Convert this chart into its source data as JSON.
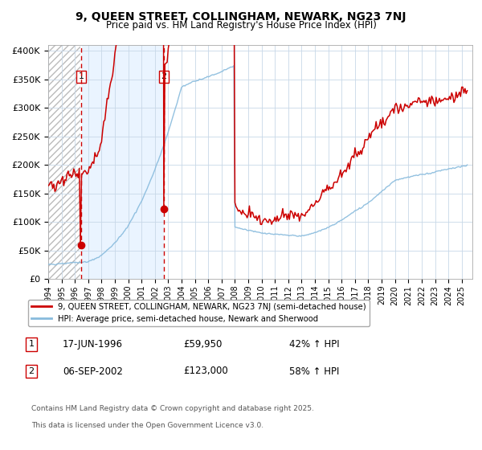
{
  "title_line1": "9, QUEEN STREET, COLLINGHAM, NEWARK, NG23 7NJ",
  "title_line2": "Price paid vs. HM Land Registry's House Price Index (HPI)",
  "ylabel_ticks": [
    "£0",
    "£50K",
    "£100K",
    "£150K",
    "£200K",
    "£250K",
    "£300K",
    "£350K",
    "£400K"
  ],
  "ytick_values": [
    0,
    50000,
    100000,
    150000,
    200000,
    250000,
    300000,
    350000,
    400000
  ],
  "ylim": [
    0,
    410000
  ],
  "xlim_start": 1994.0,
  "xlim_end": 2025.8,
  "red_color": "#cc0000",
  "blue_color": "#88bbdd",
  "bg_shade_color": "#ddeeff",
  "dashed_line_color": "#cc0000",
  "marker_color": "#cc0000",
  "purchase1_date": 1996.46,
  "purchase1_price": 59950,
  "purchase2_date": 2002.68,
  "purchase2_price": 123000,
  "legend_line1": "9, QUEEN STREET, COLLINGHAM, NEWARK, NG23 7NJ (semi-detached house)",
  "legend_line2": "HPI: Average price, semi-detached house, Newark and Sherwood",
  "start_year": 1994,
  "end_year": 2025,
  "footnote_line1": "Contains HM Land Registry data © Crown copyright and database right 2025.",
  "footnote_line2": "This data is licensed under the Open Government Licence v3.0."
}
